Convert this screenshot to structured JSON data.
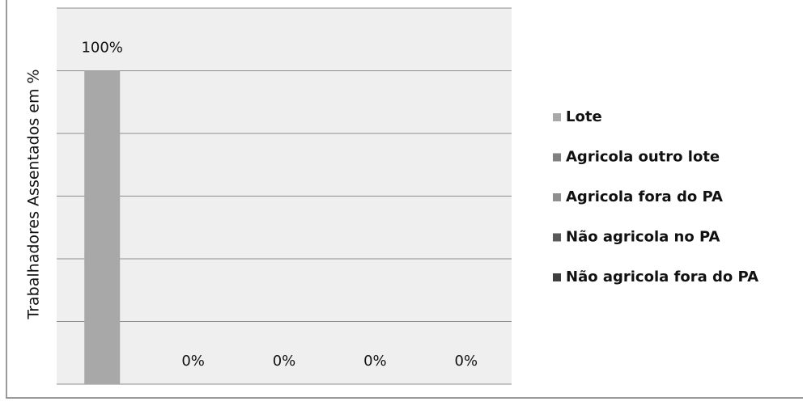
{
  "chart_data": {
    "type": "bar",
    "y_label": "Trabalhadores Assentados em %",
    "categories": [
      null
    ],
    "series": [
      {
        "name": "Lote",
        "color": "#a8a8a8",
        "values": [
          100
        ],
        "value_labels": [
          "100%"
        ]
      },
      {
        "name": "Agricola outro lote",
        "color": "#808080",
        "values": [
          0
        ],
        "value_labels": [
          "0%"
        ]
      },
      {
        "name": "Agricola fora do PA",
        "color": "#8f8f8f",
        "values": [
          0
        ],
        "value_labels": [
          "0%"
        ]
      },
      {
        "name": "Não agricola no PA",
        "color": "#5a5a5a",
        "values": [
          0
        ],
        "value_labels": [
          "0%"
        ]
      },
      {
        "name": "Não agricola fora do PA",
        "color": "#3f3f3f",
        "values": [
          0
        ],
        "value_labels": [
          "0%"
        ]
      }
    ],
    "ylim": [
      0,
      120
    ],
    "yticks": [
      0,
      20,
      40,
      60,
      80,
      100,
      120
    ],
    "grid": true,
    "legend": "right"
  }
}
